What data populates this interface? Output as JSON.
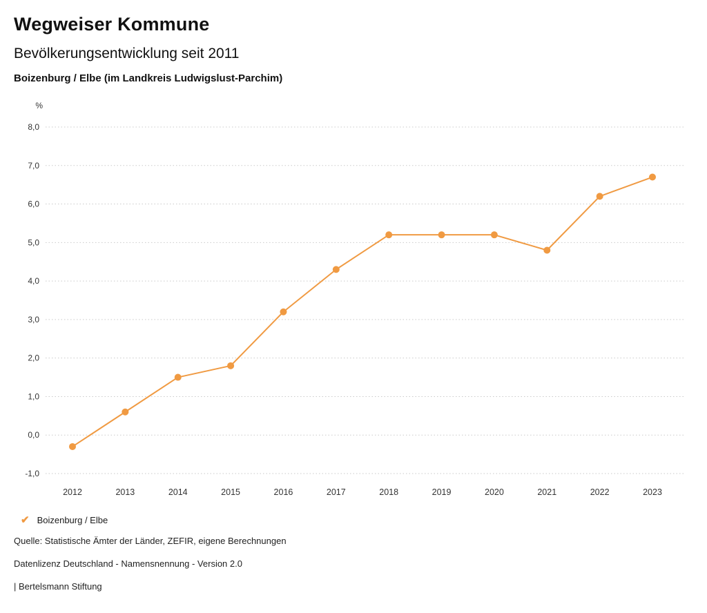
{
  "header": {
    "title": "Wegweiser Kommune",
    "subtitle": "Bevölkerungsentwicklung seit 2011",
    "region": "Boizenburg / Elbe (im Landkreis Ludwigslust-Parchim)"
  },
  "chart_data": {
    "type": "line",
    "title": "Bevölkerungsentwicklung seit 2011",
    "unit_label": "%",
    "x": [
      "2012",
      "2013",
      "2014",
      "2015",
      "2016",
      "2017",
      "2018",
      "2019",
      "2020",
      "2021",
      "2022",
      "2023"
    ],
    "series": [
      {
        "name": "Boizenburg / Elbe",
        "values": [
          -0.3,
          0.6,
          1.5,
          1.8,
          3.2,
          4.3,
          5.2,
          5.2,
          5.2,
          4.8,
          6.2,
          6.7
        ],
        "color": "#F09A42"
      }
    ],
    "ylim": [
      -1.0,
      8.0
    ],
    "ytick_step": 1.0,
    "ytick_labels": [
      "8,0",
      "7,0",
      "6,0",
      "5,0",
      "4,0",
      "3,0",
      "2,0",
      "1,0",
      "0,0",
      "-1,0"
    ],
    "grid": "horizontal dotted",
    "grid_color": "#c9c9c9",
    "axis_text_color": "#333333",
    "legend_position": "bottom-left"
  },
  "legend": {
    "check_icon": "✔",
    "label": "Boizenburg / Elbe"
  },
  "footer": {
    "source": "Quelle: Statistische Ämter der Länder, ZEFIR, eigene Berechnungen",
    "license": "Datenlizenz Deutschland - Namensnennung - Version 2.0",
    "brand": "| Bertelsmann Stiftung"
  }
}
